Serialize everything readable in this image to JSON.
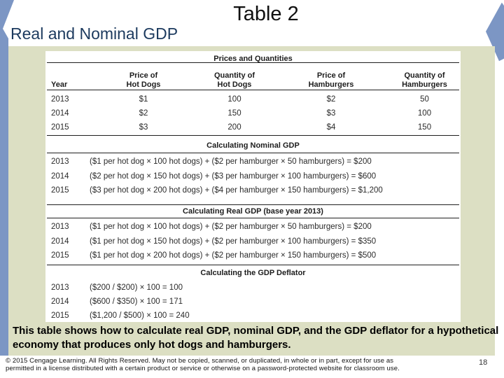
{
  "slide": {
    "title": "Table 2",
    "subtitle": "Real and Nominal GDP",
    "caption": "This table shows how to calculate real GDP, nominal GDP, and the GDP deflator for a hypothetical economy that produces only hot dogs and hamburgers.",
    "page_number": "18",
    "footer": {
      "line1": "© 2015 Cengage Learning. All Rights Reserved. May not be copied, scanned, or duplicated, in whole or in part, except for use as",
      "line2": "permitted in a license distributed with a certain product or service or otherwise on a password-protected website for classroom use."
    }
  },
  "colors": {
    "accent_blue": "#7c96c4",
    "panel_beige": "#dcdfc3",
    "title_navy": "#1c3a5e"
  },
  "table": {
    "prices": {
      "heading": "Prices and Quantities",
      "columns": [
        {
          "line1": "",
          "line2": "Year"
        },
        {
          "line1": "Price of",
          "line2": "Hot Dogs"
        },
        {
          "line1": "Quantity of",
          "line2": "Hot Dogs"
        },
        {
          "line1": "Price of",
          "line2": "Hamburgers"
        },
        {
          "line1": "Quantity of",
          "line2": "Hamburgers"
        }
      ],
      "rows": [
        {
          "year": "2013",
          "price_hotdogs": "$1",
          "qty_hotdogs": "100",
          "price_hamburgers": "$2",
          "qty_hamburgers": "50"
        },
        {
          "year": "2014",
          "price_hotdogs": "$2",
          "qty_hotdogs": "150",
          "price_hamburgers": "$3",
          "qty_hamburgers": "100"
        },
        {
          "year": "2015",
          "price_hotdogs": "$3",
          "qty_hotdogs": "200",
          "price_hamburgers": "$4",
          "qty_hamburgers": "150"
        }
      ]
    },
    "nominal": {
      "heading": "Calculating Nominal GDP",
      "rows": [
        {
          "year": "2013",
          "formula": "($1 per hot dog × 100 hot dogs) + ($2 per hamburger × 50 hamburgers) = $200"
        },
        {
          "year": "2014",
          "formula": "($2 per hot dog × 150 hot dogs) + ($3 per hamburger × 100 hamburgers) = $600"
        },
        {
          "year": "2015",
          "formula": "($3 per hot dog × 200 hot dogs) + ($4 per hamburger × 150 hamburgers) = $1,200"
        }
      ]
    },
    "real": {
      "heading": "Calculating Real GDP (base year 2013)",
      "rows": [
        {
          "year": "2013",
          "formula": "($1 per hot dog × 100 hot dogs) + ($2 per hamburger × 50 hamburgers) = $200"
        },
        {
          "year": "2014",
          "formula": "($1 per hot dog × 150 hot dogs) + ($2 per hamburger × 100 hamburgers) = $350"
        },
        {
          "year": "2015",
          "formula": "($1 per hot dog × 200 hot dogs) + ($2 per hamburger × 150 hamburgers) = $500"
        }
      ]
    },
    "deflator": {
      "heading": "Calculating the GDP Deflator",
      "rows": [
        {
          "year": "2013",
          "formula": "($200 / $200) × 100 = 100"
        },
        {
          "year": "2014",
          "formula": "($600 / $350) × 100 = 171"
        },
        {
          "year": "2015",
          "formula": "($1,200 / $500) × 100 = 240"
        }
      ]
    }
  }
}
